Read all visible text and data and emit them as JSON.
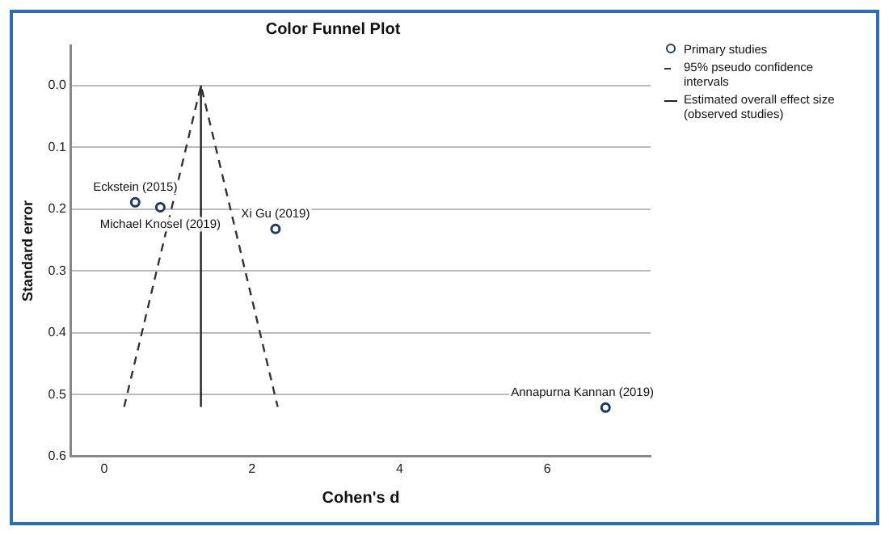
{
  "chart_data": {
    "type": "scatter",
    "title": "Color Funnel Plot",
    "xlabel": "Cohen's d",
    "ylabel": "Standard error",
    "xlim": [
      -0.45,
      7.4
    ],
    "xticks": [
      0,
      2,
      4,
      6
    ],
    "ylim": [
      0.6,
      -0.065
    ],
    "yticks": [
      {
        "value": 0,
        "label": "0.0"
      },
      {
        "value": 0.1,
        "label": "0.1"
      },
      {
        "value": 0.2,
        "label": "0.2"
      },
      {
        "value": 0.3,
        "label": "0.3"
      },
      {
        "value": 0.4,
        "label": "0.4"
      },
      {
        "value": 0.5,
        "label": "0.5"
      },
      {
        "value": 0.6,
        "label": "0.6"
      }
    ],
    "grid": "y",
    "legend": "top right",
    "series": [
      {
        "name": "Primary studies",
        "marker": "circle",
        "color": "#1f3864",
        "x": [
          0.42,
          0.76,
          2.32,
          6.79
        ],
        "values": [
          0.189,
          0.197,
          0.232,
          0.521
        ]
      },
      {
        "name": "95% pseudo confidence intervals",
        "type": "line",
        "marker": "none",
        "line_style": "dashed",
        "color": "#333333",
        "x": [
          0.27,
          1.31,
          2.35
        ],
        "values": [
          0.52,
          0,
          0.52
        ]
      },
      {
        "name": "Estimated overall effect size (observed studies)",
        "type": "line",
        "marker": "none",
        "line_style": "solid",
        "color": "#222222",
        "x": [
          1.31,
          1.31
        ],
        "values": [
          0.52,
          0
        ]
      }
    ],
    "annotations": [
      {
        "text": "Eckstein (2015)",
        "x": 0.42,
        "y": 0.189
      },
      {
        "text": "Michael Knosel (2019)",
        "x": 0.76,
        "y": 0.197
      },
      {
        "text": "Xi Gu (2019)",
        "x": 2.32,
        "y": 0.232
      },
      {
        "text": "Annapurna Kannan (2019)",
        "x": 6.79,
        "y": 0.521
      }
    ]
  }
}
